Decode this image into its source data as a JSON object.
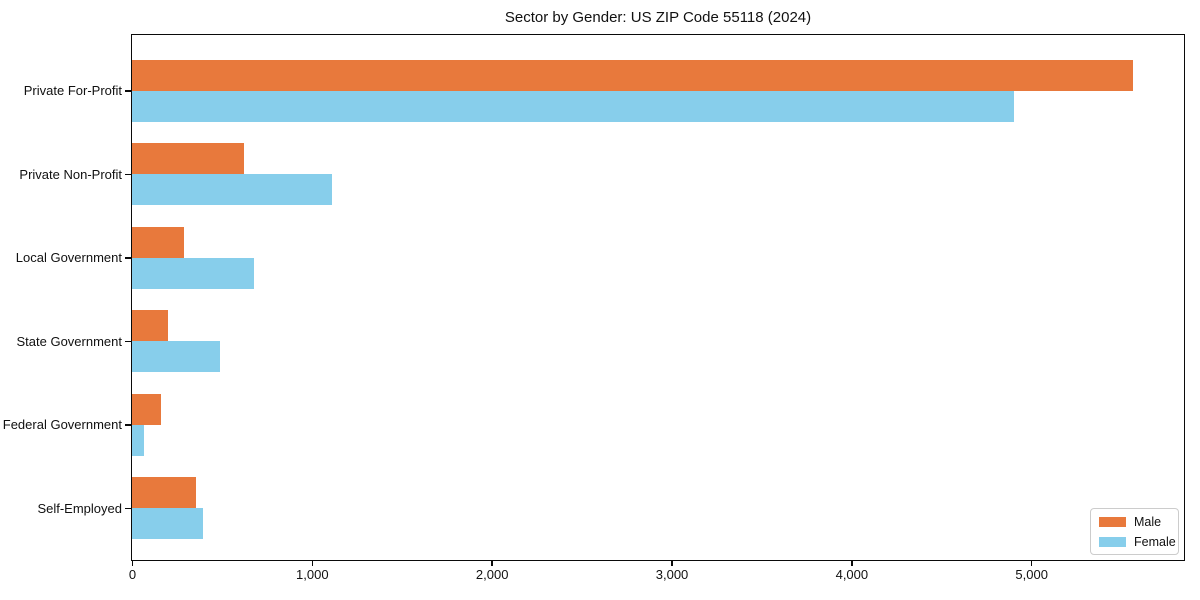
{
  "title": "Sector by Gender: US ZIP Code 55118 (2024)",
  "chart_data": {
    "type": "bar",
    "orientation": "horizontal",
    "title": "Sector by Gender: US ZIP Code 55118 (2024)",
    "categories": [
      "Private For-Profit",
      "Private Non-Profit",
      "Local Government",
      "State Government",
      "Federal Government",
      "Self-Employed"
    ],
    "series": [
      {
        "name": "Male",
        "color": "#e8793c",
        "values": [
          5565,
          620,
          290,
          200,
          160,
          355
        ]
      },
      {
        "name": "Female",
        "color": "#87ceeb",
        "values": [
          4905,
          1110,
          680,
          490,
          65,
          395
        ]
      }
    ],
    "xlabel": "",
    "ylabel": "",
    "xlim": [
      0,
      5844
    ],
    "xticks": [
      0,
      1000,
      2000,
      3000,
      4000,
      5000
    ],
    "xtick_labels": [
      "0",
      "1,000",
      "2,000",
      "3,000",
      "4,000",
      "5,000"
    ],
    "grid": false,
    "legend": {
      "position": "lower right",
      "labels": [
        "Male",
        "Female"
      ]
    },
    "colors": {
      "background": "#ffffff",
      "spine": "#0a0a0a",
      "legend_border": "#cccccc",
      "text": "#111111"
    }
  }
}
